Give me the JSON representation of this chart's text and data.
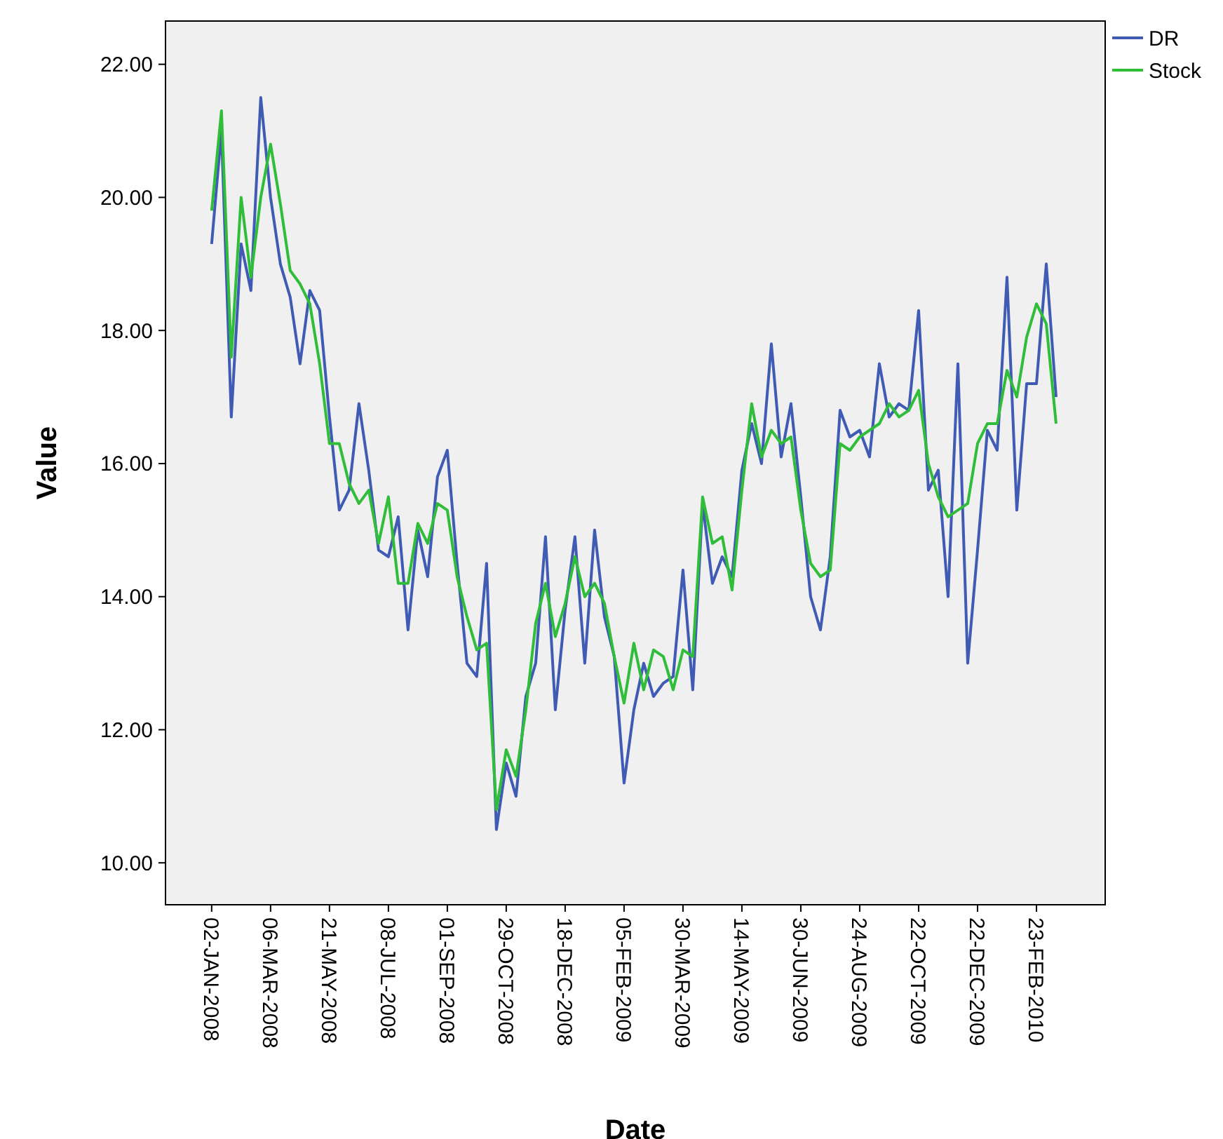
{
  "chart_data": {
    "type": "line",
    "xlabel": "Date",
    "ylabel": "Value",
    "categories": [
      "02-JAN-2008",
      null,
      null,
      null,
      null,
      null,
      "06-MAR-2008",
      null,
      null,
      null,
      null,
      null,
      "21-MAY-2008",
      null,
      null,
      null,
      null,
      null,
      "08-JUL-2008",
      null,
      null,
      null,
      null,
      null,
      "01-SEP-2008",
      null,
      null,
      null,
      null,
      null,
      "29-OCT-2008",
      null,
      null,
      null,
      null,
      null,
      "18-DEC-2008",
      null,
      null,
      null,
      null,
      null,
      "05-FEB-2009",
      null,
      null,
      null,
      null,
      null,
      "30-MAR-2009",
      null,
      null,
      null,
      null,
      null,
      "14-MAY-2009",
      null,
      null,
      null,
      null,
      null,
      "30-JUN-2009",
      null,
      null,
      null,
      null,
      null,
      "24-AUG-2009",
      null,
      null,
      null,
      null,
      null,
      "22-OCT-2009",
      null,
      null,
      null,
      null,
      null,
      "22-DEC-2009",
      null,
      null,
      null,
      null,
      null,
      "23-FEB-2010",
      null,
      null
    ],
    "series": [
      {
        "name": "DR",
        "color": "#3f5bb4",
        "values": [
          19.3,
          21.0,
          16.7,
          19.3,
          18.6,
          21.5,
          20.0,
          19.0,
          18.5,
          17.5,
          18.6,
          18.3,
          16.7,
          15.3,
          15.6,
          16.9,
          15.9,
          14.7,
          14.6,
          15.2,
          13.5,
          15.0,
          14.3,
          15.8,
          16.2,
          14.5,
          13.0,
          12.8,
          14.5,
          10.5,
          11.5,
          11.0,
          12.5,
          13.0,
          14.9,
          12.3,
          13.8,
          14.9,
          13.0,
          15.0,
          13.7,
          13.1,
          11.2,
          12.3,
          13.0,
          12.5,
          12.7,
          12.8,
          14.4,
          12.6,
          15.4,
          14.2,
          14.6,
          14.3,
          15.9,
          16.6,
          16.0,
          17.8,
          16.1,
          16.9,
          15.5,
          14.0,
          13.5,
          14.6,
          16.8,
          16.4,
          16.5,
          16.1,
          17.5,
          16.7,
          16.9,
          16.8,
          18.3,
          15.6,
          15.9,
          14.0,
          17.5,
          13.0,
          14.7,
          16.5,
          16.2,
          18.8,
          15.3,
          17.2,
          17.2,
          19.0,
          17.0
        ]
      },
      {
        "name": "Stock",
        "color": "#2fbd3a",
        "values": [
          19.8,
          21.3,
          17.6,
          20.0,
          18.8,
          20.0,
          20.8,
          19.9,
          18.9,
          18.7,
          18.4,
          17.5,
          16.3,
          16.3,
          15.7,
          15.4,
          15.6,
          14.8,
          15.5,
          14.2,
          14.2,
          15.1,
          14.8,
          15.4,
          15.3,
          14.3,
          13.7,
          13.2,
          13.3,
          10.8,
          11.7,
          11.3,
          12.3,
          13.6,
          14.2,
          13.4,
          13.9,
          14.6,
          14.0,
          14.2,
          13.9,
          13.1,
          12.4,
          13.3,
          12.6,
          13.2,
          13.1,
          12.6,
          13.2,
          13.1,
          15.5,
          14.8,
          14.9,
          14.1,
          15.6,
          16.9,
          16.1,
          16.5,
          16.3,
          16.4,
          15.3,
          14.5,
          14.3,
          14.4,
          16.3,
          16.2,
          16.4,
          16.5,
          16.6,
          16.9,
          16.7,
          16.8,
          17.1,
          16.0,
          15.5,
          15.2,
          15.3,
          15.4,
          16.3,
          16.6,
          16.6,
          17.4,
          17.0,
          17.9,
          18.4,
          18.1,
          16.6
        ]
      }
    ],
    "ylim": [
      9.37,
      22.65
    ],
    "yticks": [
      {
        "value": 10,
        "label": "10.00"
      },
      {
        "value": 12,
        "label": "12.00"
      },
      {
        "value": 14,
        "label": "14.00"
      },
      {
        "value": 16,
        "label": "16.00"
      },
      {
        "value": 18,
        "label": "18.00"
      },
      {
        "value": 20,
        "label": "20.00"
      },
      {
        "value": 22,
        "label": "22.00"
      }
    ],
    "legend": "top right",
    "marker": "none",
    "line_style": "solid"
  }
}
